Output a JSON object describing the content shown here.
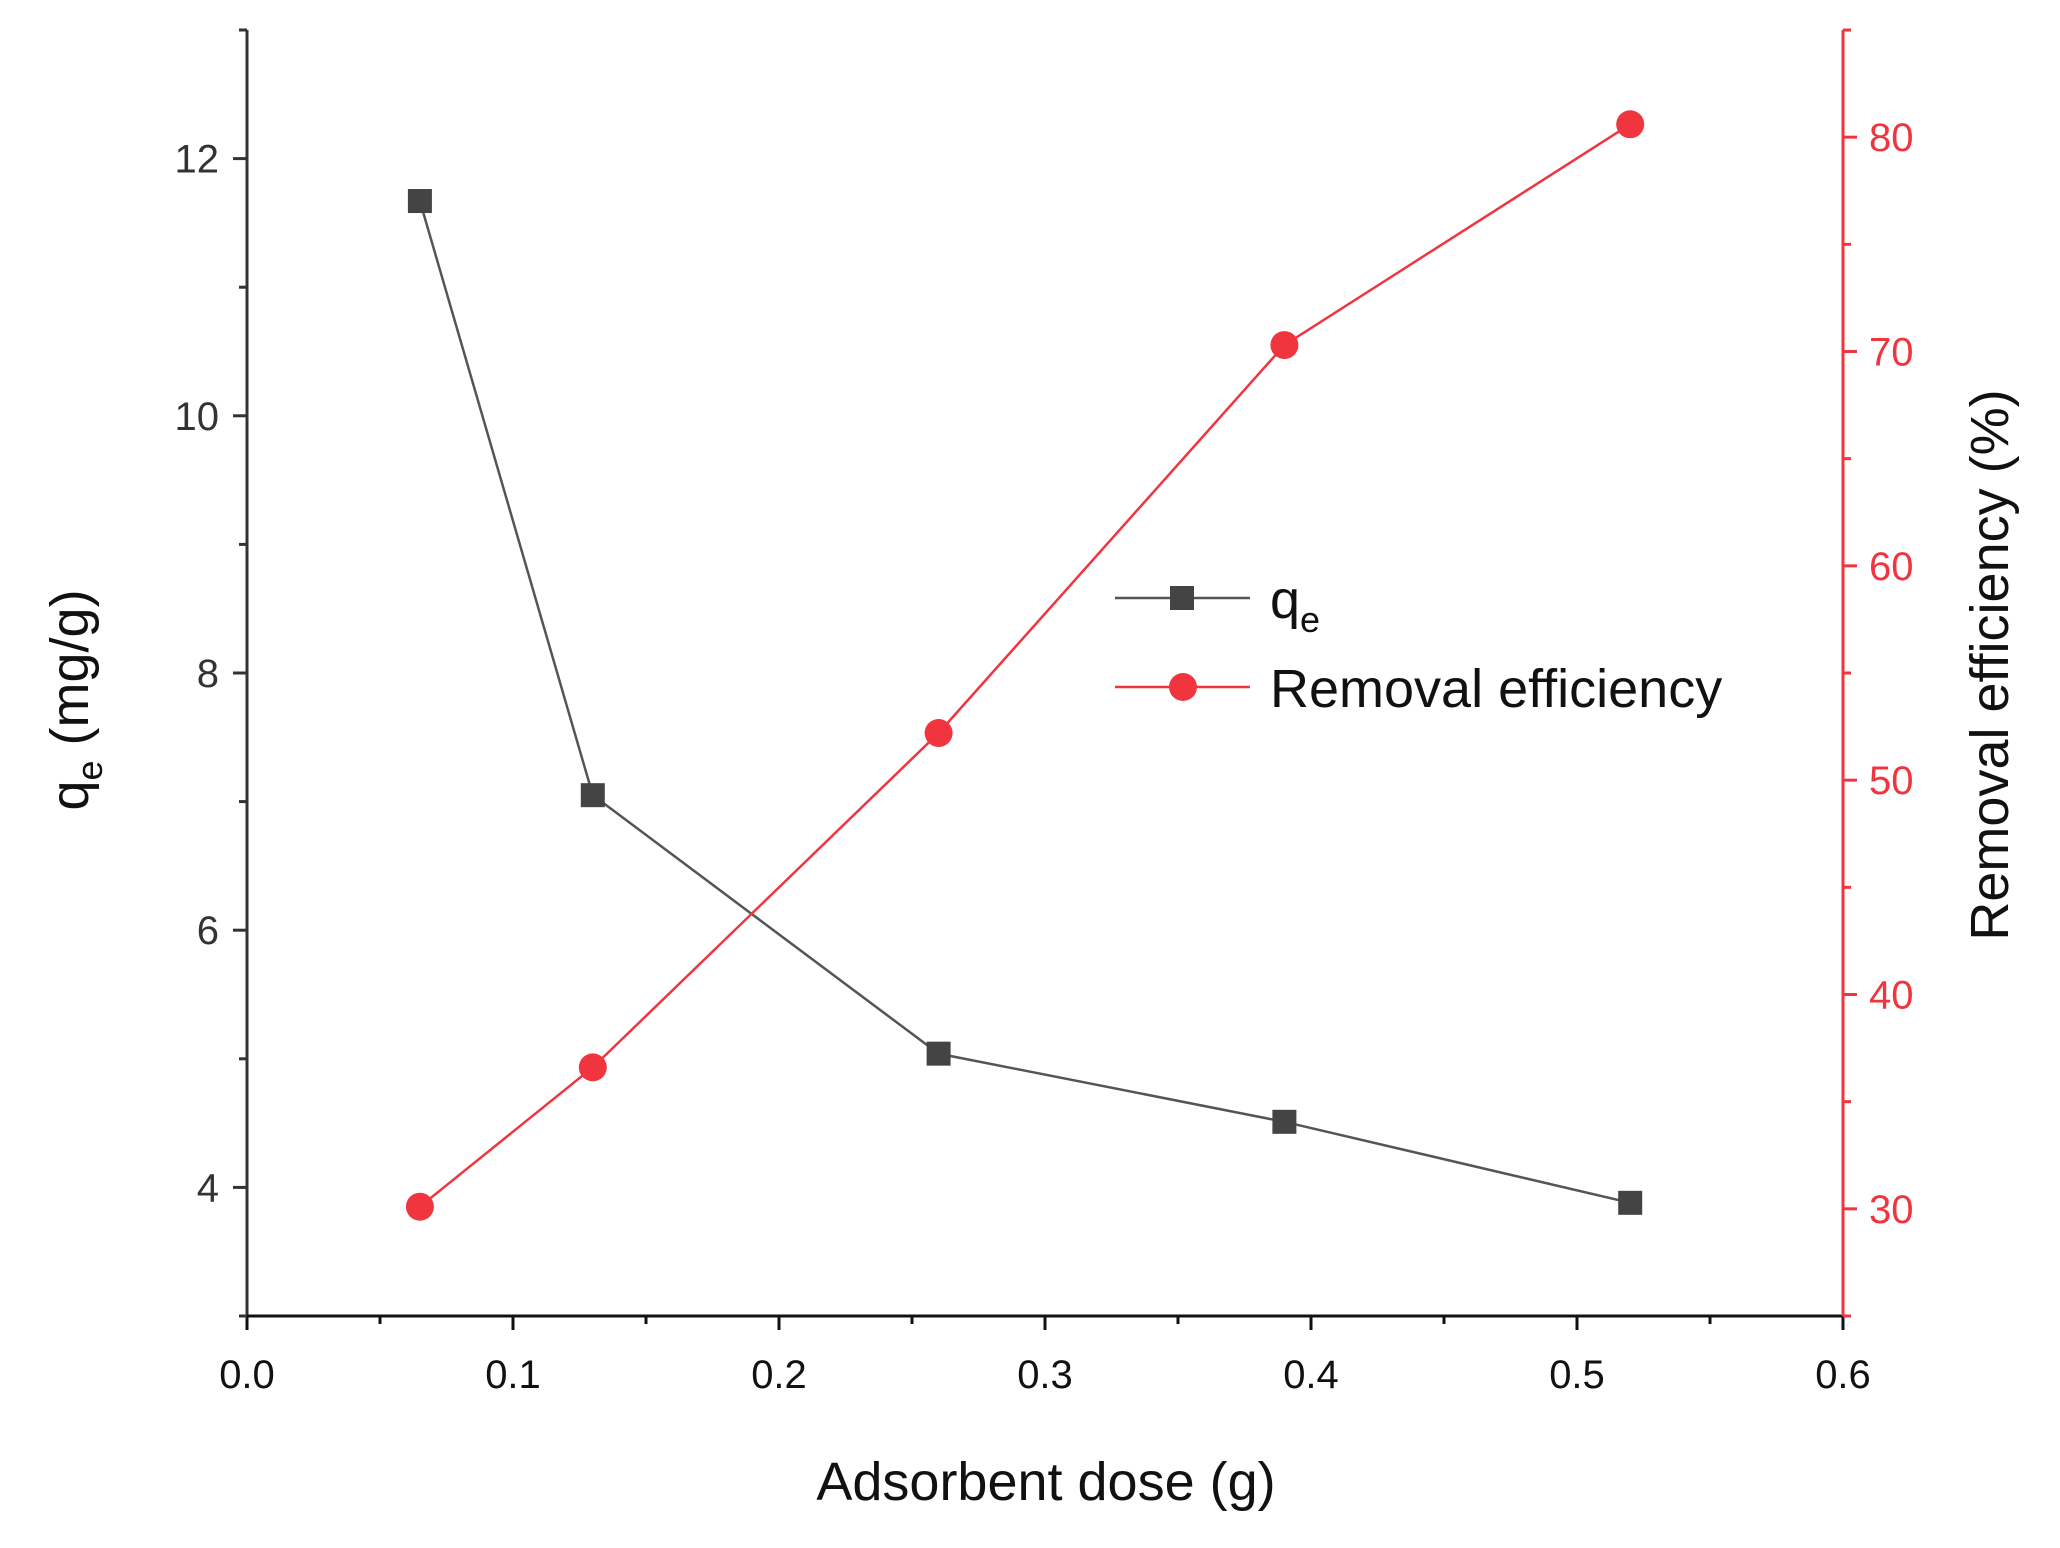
{
  "chart_data": {
    "type": "line",
    "dual_axis": true,
    "x": [
      0.065,
      0.13,
      0.26,
      0.39,
      0.52
    ],
    "xlabel": "Adsorbent dose (g)",
    "xlim": [
      0.0,
      0.6
    ],
    "xticks": [
      "0.0",
      "0.1",
      "0.2",
      "0.3",
      "0.4",
      "0.5",
      "0.6"
    ],
    "ylabel_left": {
      "main": "q",
      "sub": "e",
      "rest": " (mg/g)"
    },
    "ylim_left": [
      3,
      13
    ],
    "yticks_left": [
      "4",
      "6",
      "8",
      "10",
      "12"
    ],
    "ylabel_right": "Removal efficiency (%)",
    "ylim_right": [
      25,
      85
    ],
    "yticks_right": [
      "30",
      "40",
      "50",
      "60",
      "70",
      "80"
    ],
    "series": [
      {
        "name": "q",
        "name_sub": "e",
        "axis": "left",
        "marker": "square",
        "color": "#444444",
        "line_color": "#555555",
        "values": [
          11.67,
          7.05,
          5.04,
          4.51,
          3.88
        ]
      },
      {
        "name": "Removal efficiency",
        "axis": "right",
        "marker": "circle",
        "color": "#f0353e",
        "line_color": "#f0353e",
        "values": [
          30.1,
          36.6,
          52.2,
          70.3,
          80.6
        ]
      }
    ],
    "legend_position": "center-right",
    "axis_colors": {
      "left": "#333333",
      "right": "#f0353e"
    }
  }
}
